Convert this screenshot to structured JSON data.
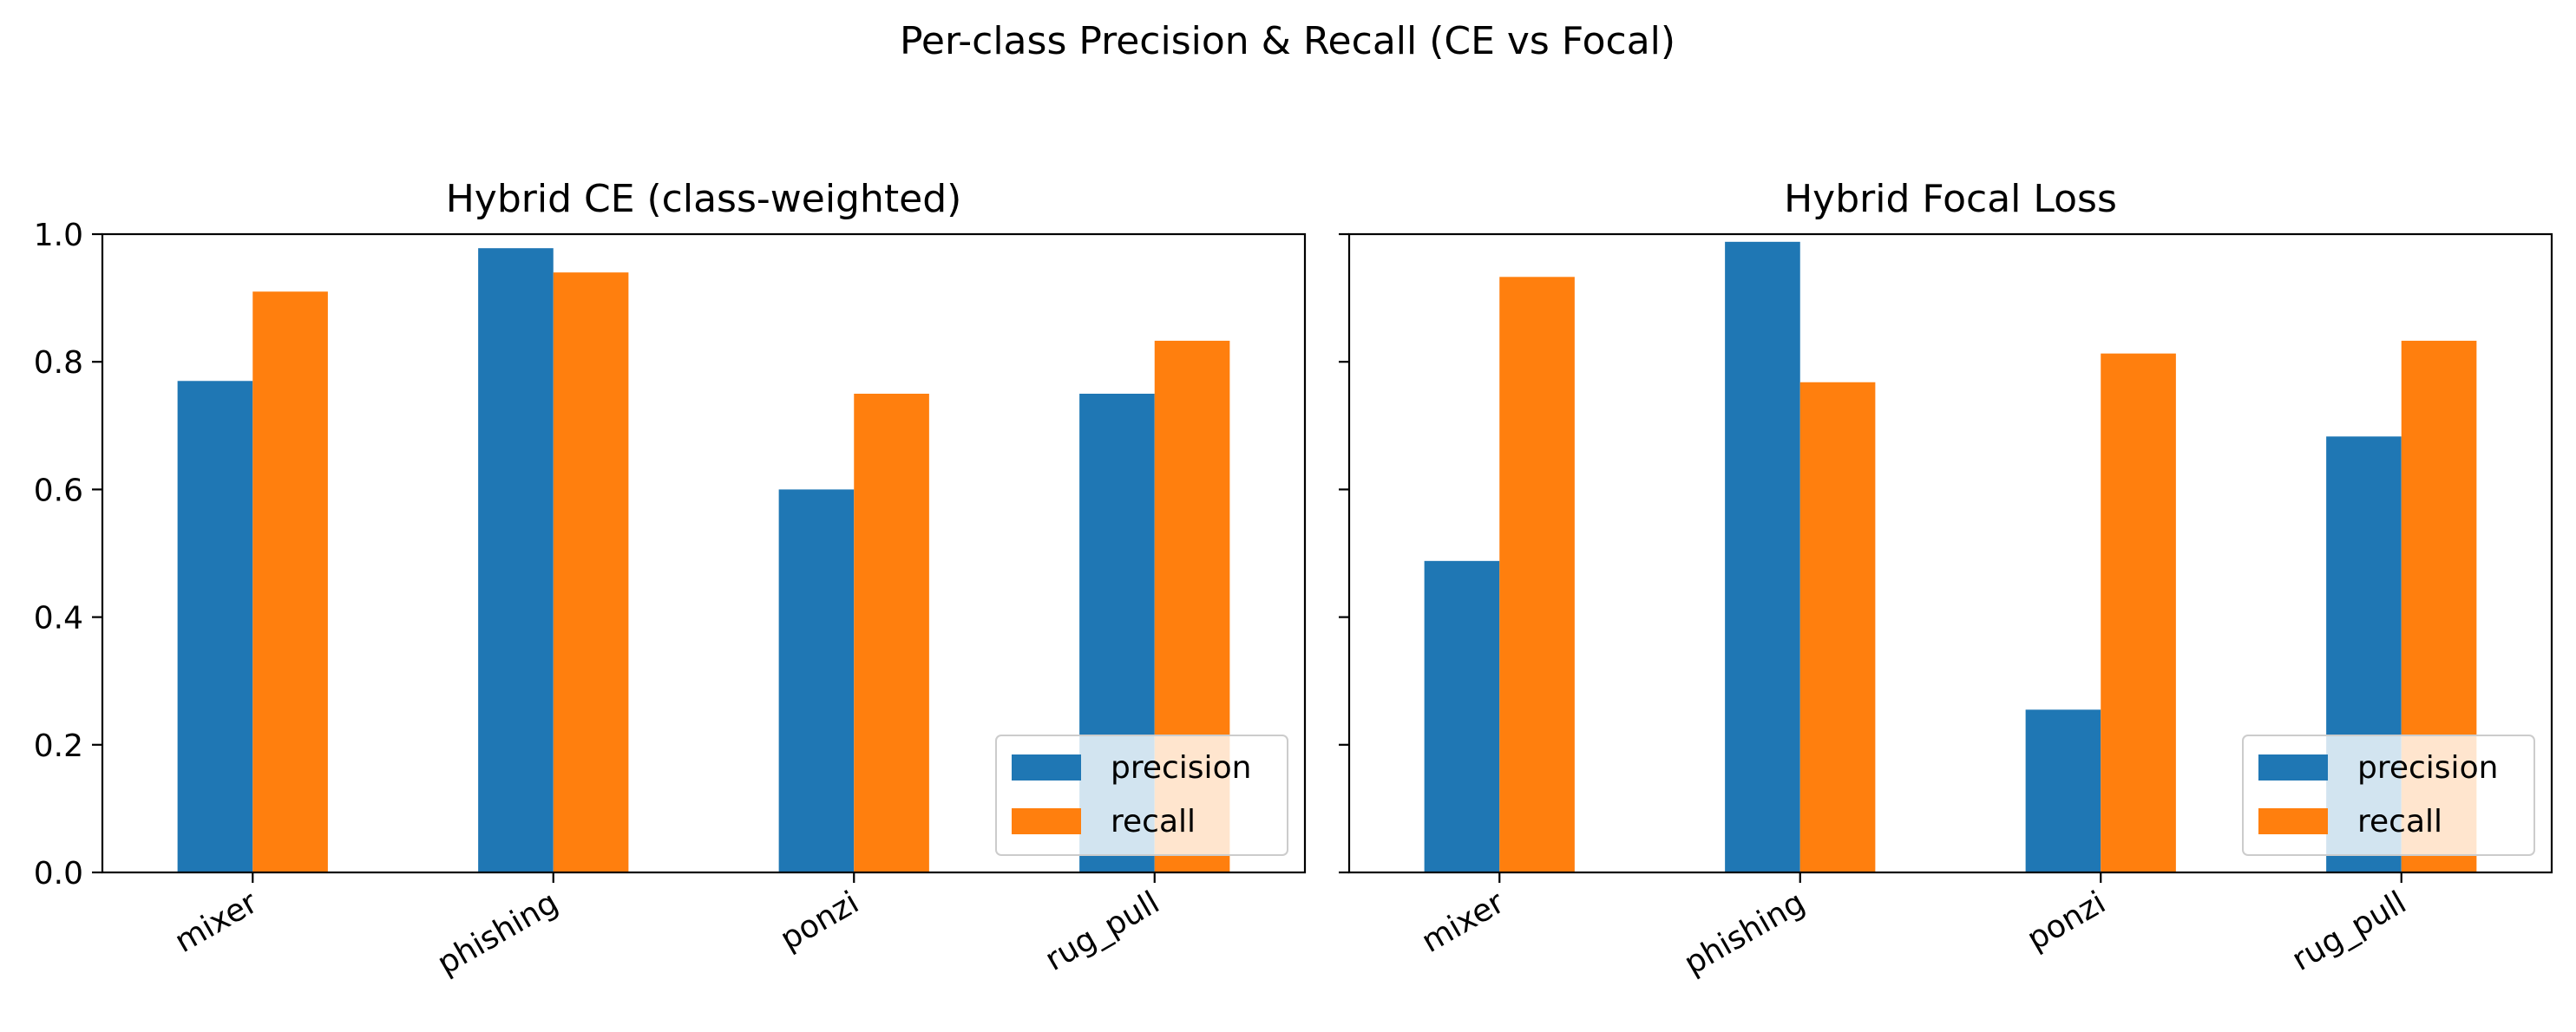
{
  "suptitle": "Per-class Precision & Recall (CE vs Focal)",
  "colors": {
    "precision": "#1f77b4",
    "recall": "#ff7f0e"
  },
  "chart_data": [
    {
      "type": "bar",
      "title": "Hybrid CE (class-weighted)",
      "categories": [
        "mixer",
        "phishing",
        "ponzi",
        "rug_pull"
      ],
      "series": [
        {
          "name": "precision",
          "values": [
            0.77,
            0.978,
            0.6,
            0.75
          ]
        },
        {
          "name": "recall",
          "values": [
            0.91,
            0.94,
            0.75,
            0.833
          ]
        }
      ],
      "ylim": [
        0,
        1.0
      ],
      "yticks": [
        "0.0",
        "0.2",
        "0.4",
        "0.6",
        "0.8",
        "1.0"
      ],
      "legend": "lower right"
    },
    {
      "type": "bar",
      "title": "Hybrid Focal Loss",
      "categories": [
        "mixer",
        "phishing",
        "ponzi",
        "rug_pull"
      ],
      "series": [
        {
          "name": "precision",
          "values": [
            0.488,
            0.988,
            0.255,
            0.683
          ]
        },
        {
          "name": "recall",
          "values": [
            0.933,
            0.768,
            0.813,
            0.833
          ]
        }
      ],
      "ylim": [
        0,
        1.0
      ],
      "yticks": [],
      "legend": "lower right"
    }
  ]
}
